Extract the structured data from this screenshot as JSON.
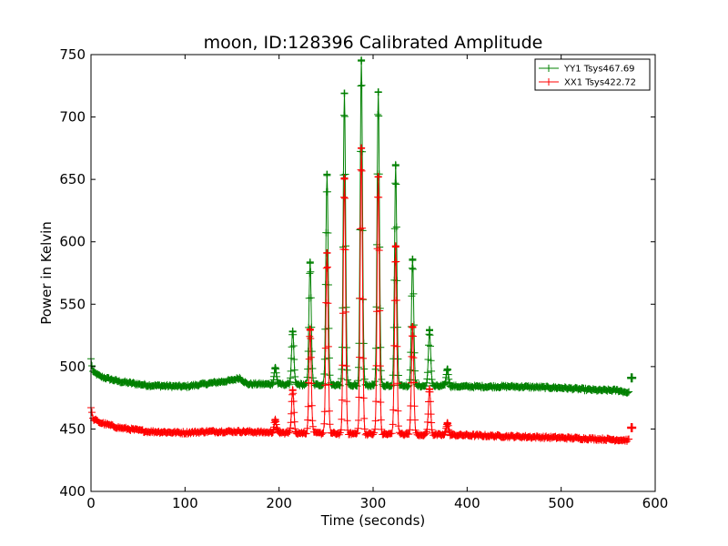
{
  "chart_data": {
    "type": "line",
    "title": "moon, ID:128396 Calibrated Amplitude",
    "xlabel": "Time (seconds)",
    "ylabel": "Power in Kelvin",
    "xlim": [
      0,
      600
    ],
    "ylim": [
      400,
      750
    ],
    "xticks": [
      "0",
      "100",
      "200",
      "300",
      "400",
      "500",
      "600"
    ],
    "yticks": [
      "400",
      "450",
      "500",
      "550",
      "600",
      "650",
      "700",
      "750"
    ],
    "grid": false,
    "legend_position": "top-right",
    "markers": "plus",
    "series": [
      {
        "name": "YY1 Tsys467.69",
        "color": "#008000",
        "baseline": [
          [
            0,
            506
          ],
          [
            2,
            496
          ],
          [
            10,
            492
          ],
          [
            30,
            488
          ],
          [
            60,
            485
          ],
          [
            100,
            484
          ],
          [
            120,
            486
          ],
          [
            150,
            489
          ],
          [
            158,
            491
          ],
          [
            166,
            486
          ],
          [
            180,
            486
          ],
          [
            300,
            485
          ],
          [
            400,
            484
          ],
          [
            450,
            484
          ],
          [
            500,
            483
          ],
          [
            520,
            482
          ],
          [
            540,
            481
          ],
          [
            560,
            481
          ],
          [
            572,
            479
          ]
        ],
        "peaks": [
          [
            196,
            499
          ],
          [
            214.5,
            528
          ],
          [
            233,
            583
          ],
          [
            251,
            654
          ],
          [
            269.5,
            719
          ],
          [
            287.5,
            745
          ],
          [
            305.5,
            720
          ],
          [
            324,
            661
          ],
          [
            342,
            586
          ],
          [
            360,
            529
          ],
          [
            379,
            498
          ]
        ],
        "end_markers": [
          [
            575,
            491
          ]
        ]
      },
      {
        "name": "XX1 Tsys422.72",
        "color": "#ff0000",
        "baseline": [
          [
            0,
            468
          ],
          [
            2,
            458
          ],
          [
            10,
            455
          ],
          [
            30,
            451
          ],
          [
            60,
            448
          ],
          [
            100,
            447
          ],
          [
            125,
            448
          ],
          [
            160,
            448
          ],
          [
            200,
            447
          ],
          [
            300,
            446
          ],
          [
            400,
            445
          ],
          [
            450,
            444
          ],
          [
            500,
            443
          ],
          [
            540,
            442
          ],
          [
            572,
            441
          ]
        ],
        "peaks": [
          [
            196,
            457
          ],
          [
            214.5,
            481
          ],
          [
            233,
            530
          ],
          [
            251,
            591
          ],
          [
            269.5,
            651
          ],
          [
            287.5,
            675
          ],
          [
            305.5,
            652
          ],
          [
            324,
            596
          ],
          [
            342,
            532
          ],
          [
            360,
            482
          ],
          [
            379,
            455
          ]
        ],
        "end_markers": [
          [
            575,
            451
          ]
        ]
      }
    ]
  }
}
